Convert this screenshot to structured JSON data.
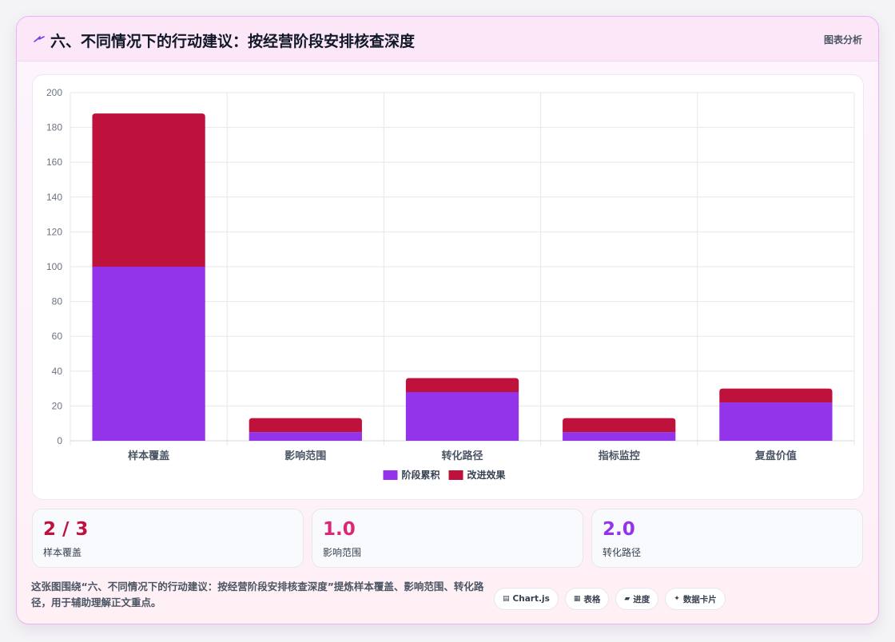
{
  "header": {
    "icon": "sparkle-icon",
    "title": "六、不同情况下的行动建议：按经营阶段安排核查深度",
    "tag": "图表分析"
  },
  "colors": {
    "series1": "#9333ea",
    "series2": "#be123c",
    "grid": "#e5e7eb",
    "axis_text": "#6b7280",
    "stat1": "#be123c",
    "stat2": "#db2777",
    "stat3": "#9333ea"
  },
  "chart_data": {
    "type": "bar",
    "stacked": true,
    "categories": [
      "样本覆盖",
      "影响范围",
      "转化路径",
      "指标监控",
      "复盘价值"
    ],
    "series": [
      {
        "name": "阶段累积",
        "values": [
          100,
          5,
          28,
          5,
          22
        ]
      },
      {
        "name": "改进效果",
        "values": [
          88,
          8,
          8,
          8,
          8
        ]
      }
    ],
    "ylim": [
      0,
      200
    ],
    "yticks": [
      0,
      20,
      40,
      60,
      80,
      100,
      120,
      140,
      160,
      180,
      200
    ],
    "grid": true,
    "legend": "bottom"
  },
  "stats": [
    {
      "value": "2 / 3",
      "label": "样本覆盖"
    },
    {
      "value": "1.0",
      "label": "影响范围"
    },
    {
      "value": "2.0",
      "label": "转化路径"
    }
  ],
  "footer": {
    "text": "这张图围绕“六、不同情况下的行动建议：按经营阶段安排核查深度”提炼样本覆盖、影响范围、转化路径，用于辅助理解正文重点。",
    "pills": [
      {
        "icon": "chart-icon",
        "glyph": "▤",
        "label": "Chart.js"
      },
      {
        "icon": "table-icon",
        "glyph": "▦",
        "label": "表格"
      },
      {
        "icon": "progress-icon",
        "glyph": "▰",
        "label": "进度"
      },
      {
        "icon": "star-icon",
        "glyph": "✦",
        "label": "数据卡片"
      }
    ]
  }
}
